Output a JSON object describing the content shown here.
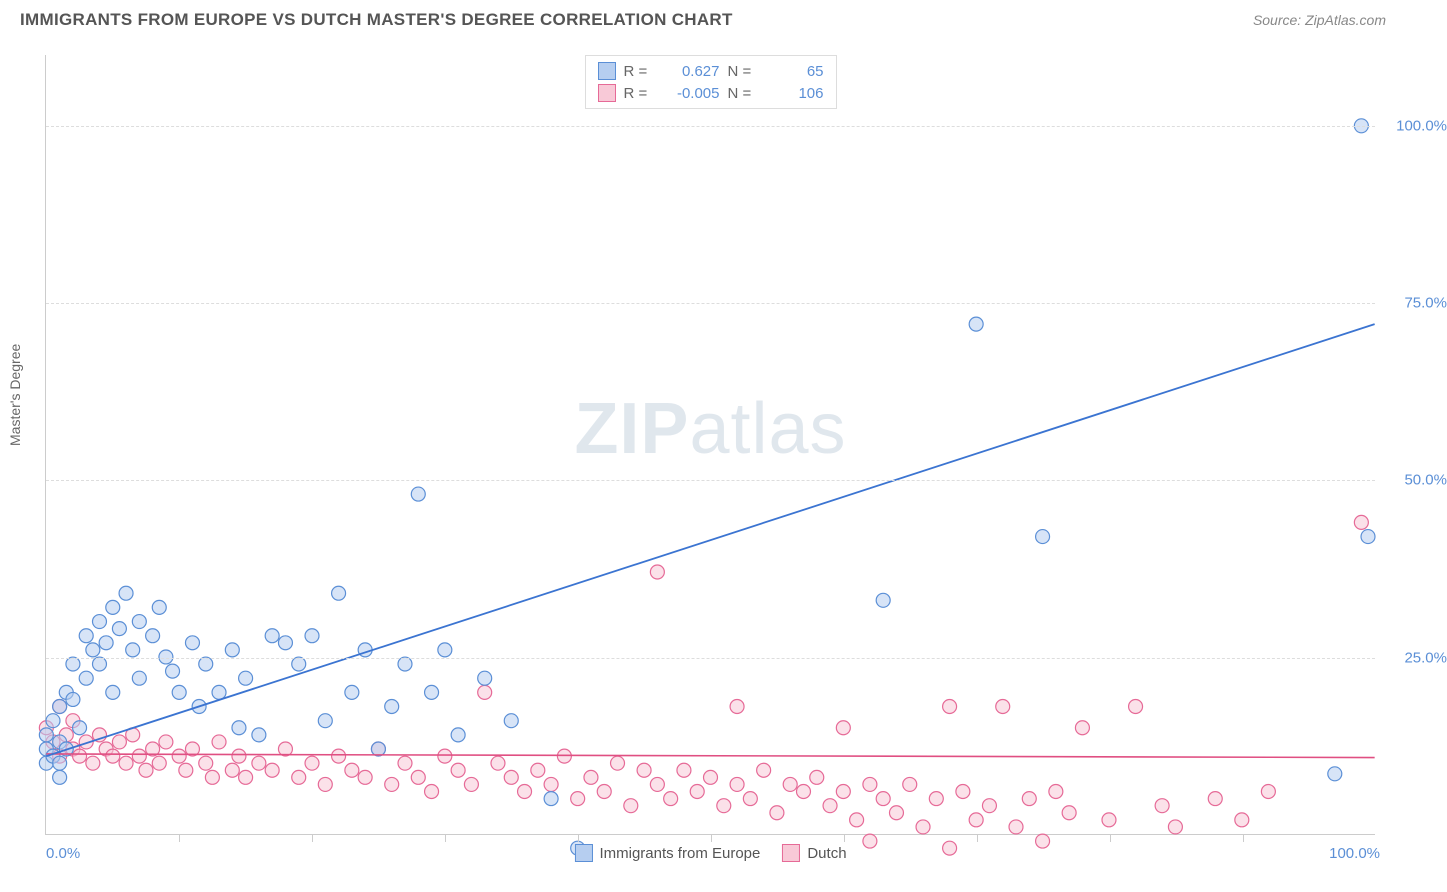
{
  "header": {
    "title": "IMMIGRANTS FROM EUROPE VS DUTCH MASTER'S DEGREE CORRELATION CHART",
    "source_prefix": "Source: ",
    "source": "ZipAtlas.com"
  },
  "watermark": {
    "zip": "ZIP",
    "atlas": "atlas"
  },
  "chart": {
    "type": "scatter",
    "xlabel": "",
    "ylabel": "Master's Degree",
    "xlim": [
      0,
      100
    ],
    "ylim": [
      0,
      110
    ],
    "x_ticks_minor_step": 10,
    "y_gridlines": [
      25,
      50,
      75,
      100
    ],
    "y_tick_labels": [
      "25.0%",
      "50.0%",
      "75.0%",
      "100.0%"
    ],
    "x_tick_labels": {
      "left": "0.0%",
      "right": "100.0%"
    },
    "grid_color": "#dddddd",
    "axis_color": "#cccccc",
    "background_color": "#ffffff",
    "label_color": "#666666",
    "tick_label_color": "#5b8fd6",
    "tick_label_fontsize": 15
  },
  "legend_top": {
    "rows": [
      {
        "swatch_fill": "#b6cef0",
        "swatch_border": "#5b8fd6",
        "r_label": "R =",
        "r": "0.627",
        "n_label": "N =",
        "n": "65"
      },
      {
        "swatch_fill": "#f8c9d7",
        "swatch_border": "#e66a97",
        "r_label": "R =",
        "r": "-0.005",
        "n_label": "N =",
        "n": "106"
      }
    ]
  },
  "legend_bottom": {
    "items": [
      {
        "swatch_fill": "#b6cef0",
        "swatch_border": "#5b8fd6",
        "label": "Immigrants from Europe"
      },
      {
        "swatch_fill": "#f8c9d7",
        "swatch_border": "#e66a97",
        "label": "Dutch"
      }
    ]
  },
  "series": {
    "europe": {
      "marker_fill": "#b6cef0",
      "marker_stroke": "#5b8fd6",
      "marker_fill_opacity": 0.55,
      "marker_r": 7,
      "trend": {
        "x1": 0,
        "y1": 11,
        "x2": 100,
        "y2": 72,
        "stroke": "#3b74d1",
        "width": 1.8
      },
      "points": [
        [
          0,
          10
        ],
        [
          0,
          12
        ],
        [
          0,
          14
        ],
        [
          0.5,
          11
        ],
        [
          0.5,
          16
        ],
        [
          1,
          10
        ],
        [
          1,
          13
        ],
        [
          1,
          18
        ],
        [
          1.5,
          12
        ],
        [
          1.5,
          20
        ],
        [
          2,
          19
        ],
        [
          2,
          24
        ],
        [
          2.5,
          15
        ],
        [
          3,
          22
        ],
        [
          3,
          28
        ],
        [
          3.5,
          26
        ],
        [
          4,
          30
        ],
        [
          4,
          24
        ],
        [
          4.5,
          27
        ],
        [
          5,
          32
        ],
        [
          5,
          20
        ],
        [
          5.5,
          29
        ],
        [
          6,
          34
        ],
        [
          6.5,
          26
        ],
        [
          7,
          30
        ],
        [
          7,
          22
        ],
        [
          8,
          28
        ],
        [
          8.5,
          32
        ],
        [
          9,
          25
        ],
        [
          9.5,
          23
        ],
        [
          10,
          20
        ],
        [
          11,
          27
        ],
        [
          11.5,
          18
        ],
        [
          12,
          24
        ],
        [
          13,
          20
        ],
        [
          14,
          26
        ],
        [
          14.5,
          15
        ],
        [
          15,
          22
        ],
        [
          16,
          14
        ],
        [
          17,
          28
        ],
        [
          18,
          27
        ],
        [
          19,
          24
        ],
        [
          20,
          28
        ],
        [
          21,
          16
        ],
        [
          22,
          34
        ],
        [
          23,
          20
        ],
        [
          24,
          26
        ],
        [
          25,
          12
        ],
        [
          26,
          18
        ],
        [
          27,
          24
        ],
        [
          28,
          48
        ],
        [
          29,
          20
        ],
        [
          30,
          26
        ],
        [
          31,
          14
        ],
        [
          33,
          22
        ],
        [
          35,
          16
        ],
        [
          38,
          5
        ],
        [
          40,
          -2
        ],
        [
          63,
          33
        ],
        [
          70,
          72
        ],
        [
          75,
          42
        ],
        [
          97,
          8.5
        ],
        [
          99,
          100
        ],
        [
          99.5,
          42
        ],
        [
          1,
          8
        ]
      ]
    },
    "dutch": {
      "marker_fill": "#f8c9d7",
      "marker_stroke": "#e66a97",
      "marker_fill_opacity": 0.55,
      "marker_r": 7,
      "trend": {
        "x1": 0,
        "y1": 11.3,
        "x2": 100,
        "y2": 10.8,
        "stroke": "#e04f82",
        "width": 1.6
      },
      "points": [
        [
          0,
          15
        ],
        [
          0.5,
          13
        ],
        [
          1,
          18
        ],
        [
          1,
          11
        ],
        [
          1.5,
          14
        ],
        [
          2,
          16
        ],
        [
          2,
          12
        ],
        [
          2.5,
          11
        ],
        [
          3,
          13
        ],
        [
          3.5,
          10
        ],
        [
          4,
          14
        ],
        [
          4.5,
          12
        ],
        [
          5,
          11
        ],
        [
          5.5,
          13
        ],
        [
          6,
          10
        ],
        [
          6.5,
          14
        ],
        [
          7,
          11
        ],
        [
          7.5,
          9
        ],
        [
          8,
          12
        ],
        [
          8.5,
          10
        ],
        [
          9,
          13
        ],
        [
          10,
          11
        ],
        [
          10.5,
          9
        ],
        [
          11,
          12
        ],
        [
          12,
          10
        ],
        [
          12.5,
          8
        ],
        [
          13,
          13
        ],
        [
          14,
          9
        ],
        [
          14.5,
          11
        ],
        [
          15,
          8
        ],
        [
          16,
          10
        ],
        [
          17,
          9
        ],
        [
          18,
          12
        ],
        [
          19,
          8
        ],
        [
          20,
          10
        ],
        [
          21,
          7
        ],
        [
          22,
          11
        ],
        [
          23,
          9
        ],
        [
          24,
          8
        ],
        [
          25,
          12
        ],
        [
          26,
          7
        ],
        [
          27,
          10
        ],
        [
          28,
          8
        ],
        [
          29,
          6
        ],
        [
          30,
          11
        ],
        [
          31,
          9
        ],
        [
          32,
          7
        ],
        [
          33,
          20
        ],
        [
          34,
          10
        ],
        [
          35,
          8
        ],
        [
          36,
          6
        ],
        [
          37,
          9
        ],
        [
          38,
          7
        ],
        [
          39,
          11
        ],
        [
          40,
          5
        ],
        [
          41,
          8
        ],
        [
          42,
          6
        ],
        [
          43,
          10
        ],
        [
          44,
          4
        ],
        [
          45,
          9
        ],
        [
          46,
          37
        ],
        [
          46,
          7
        ],
        [
          47,
          5
        ],
        [
          48,
          9
        ],
        [
          49,
          6
        ],
        [
          50,
          8
        ],
        [
          51,
          4
        ],
        [
          52,
          18
        ],
        [
          52,
          7
        ],
        [
          53,
          5
        ],
        [
          54,
          9
        ],
        [
          55,
          3
        ],
        [
          56,
          7
        ],
        [
          57,
          6
        ],
        [
          58,
          8
        ],
        [
          59,
          4
        ],
        [
          60,
          15
        ],
        [
          60,
          6
        ],
        [
          61,
          2
        ],
        [
          62,
          7
        ],
        [
          62,
          -1
        ],
        [
          63,
          5
        ],
        [
          64,
          3
        ],
        [
          65,
          7
        ],
        [
          66,
          1
        ],
        [
          67,
          5
        ],
        [
          68,
          -2
        ],
        [
          69,
          6
        ],
        [
          70,
          2
        ],
        [
          71,
          4
        ],
        [
          72,
          18
        ],
        [
          73,
          1
        ],
        [
          74,
          5
        ],
        [
          75,
          -1
        ],
        [
          76,
          6
        ],
        [
          77,
          3
        ],
        [
          78,
          15
        ],
        [
          80,
          2
        ],
        [
          82,
          18
        ],
        [
          84,
          4
        ],
        [
          85,
          1
        ],
        [
          88,
          5
        ],
        [
          90,
          2
        ],
        [
          92,
          6
        ],
        [
          99,
          44
        ],
        [
          68,
          18
        ]
      ]
    }
  }
}
